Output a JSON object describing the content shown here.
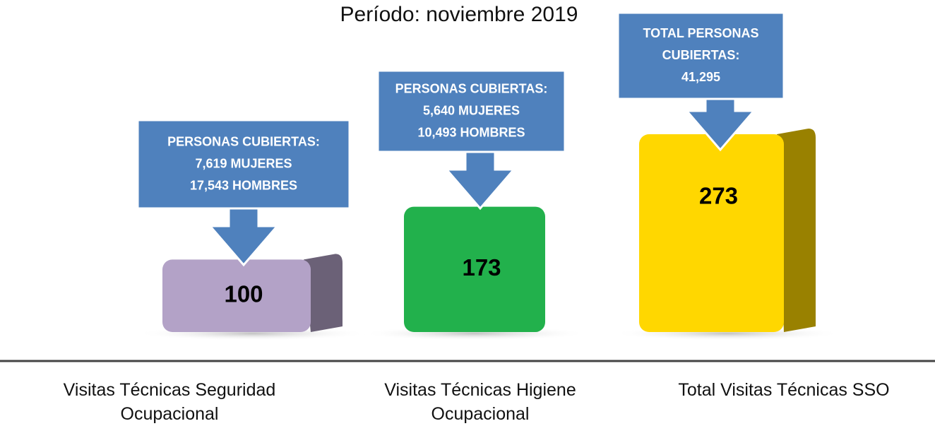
{
  "chart_data": {
    "type": "bar",
    "title": "Período: noviembre 2019",
    "categories": [
      "Visitas Técnicas Seguridad Ocupacional",
      "Visitas Técnicas Higiene Ocupacional",
      "Total Visitas Técnicas SSO"
    ],
    "values": [
      100,
      173,
      273
    ],
    "colors": [
      "#b3a2c7",
      "#22b14c",
      "#ffd700"
    ],
    "annotations": [
      {
        "lines": [
          "PERSONAS CUBIERTAS:",
          "7,619 MUJERES",
          "17,543 HOMBRES"
        ]
      },
      {
        "lines": [
          "PERSONAS CUBIERTAS:",
          "5,640 MUJERES",
          "10,493 HOMBRES"
        ]
      },
      {
        "lines": [
          "TOTAL PERSONAS",
          "CUBIERTAS:",
          "41,295"
        ]
      }
    ]
  }
}
